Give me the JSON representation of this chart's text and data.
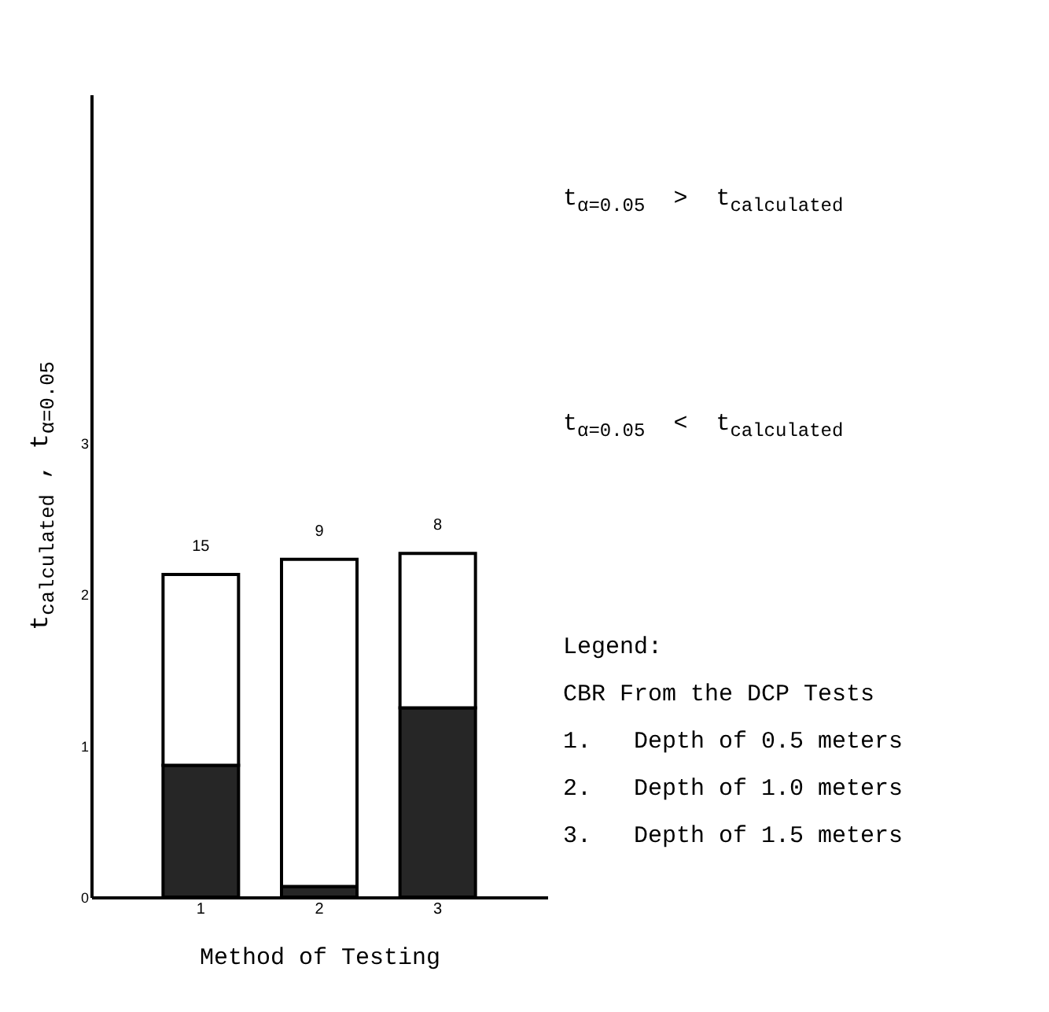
{
  "chart_data": {
    "type": "bar",
    "stacked": true,
    "categories": [
      "1",
      "2",
      "3"
    ],
    "series": [
      {
        "color": "#262626",
        "values": [
          0.87,
          0.07,
          1.25
        ]
      },
      {
        "color": "#ffffff",
        "values": [
          1.26,
          2.16,
          1.02
        ]
      }
    ],
    "ylim": [
      0,
      5.3
    ],
    "yticks": [
      0,
      1,
      2,
      3
    ],
    "xlabel": "Method of Testing",
    "ylabel": "t$_{calculated}$ , t$_{α=0.05}$",
    "grid": false,
    "legend": false,
    "annotations": [
      {
        "text": "15",
        "x": "1",
        "y": 2.13
      },
      {
        "text": "9",
        "x": "2",
        "y": 2.23
      },
      {
        "text": "8",
        "x": "3",
        "y": 2.27
      },
      "t$_{α=0.05}$  >  t$_{calculated}$",
      "t$_{α=0.05}$  <  t$_{calculated}$",
      "Legend:",
      "CBR From the DCP Tests",
      "1.   Depth of 0.5 meters",
      "2.   Depth of 1.0 meters",
      "3.   Depth of 1.5 meters"
    ]
  }
}
